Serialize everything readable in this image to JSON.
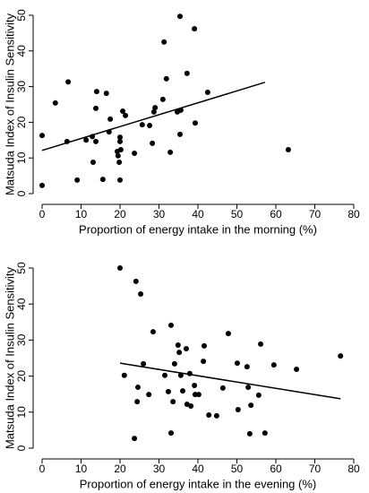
{
  "chart_data": [
    {
      "type": "scatter",
      "x_label": "Proportion of energy intake in the morning (%)",
      "y_label": "Matsuda Index of Insulin Sensitivity",
      "x": [
        0,
        0,
        3.4,
        6.4,
        6.7,
        9,
        11.3,
        12.9,
        13.1,
        13.8,
        13.8,
        14,
        15.6,
        16.5,
        17.2,
        17.5,
        19.3,
        19.5,
        19.8,
        20,
        20,
        20,
        20.2,
        20.7,
        21.4,
        23.7,
        25.7,
        27.6,
        28.3,
        28.7,
        29,
        31,
        31.3,
        31.9,
        32.9,
        34.7,
        35.4,
        35.4,
        35.6,
        37.2,
        39.1,
        39.3,
        42.5,
        63.2
      ],
      "values": [
        16.3,
        2.3,
        25.4,
        14.6,
        31.3,
        3.8,
        15,
        16,
        8.8,
        14.6,
        23.9,
        28.6,
        4,
        28.1,
        17.3,
        20.9,
        11.8,
        10.6,
        8.8,
        14.6,
        15.8,
        3.8,
        12.3,
        23.1,
        21.9,
        11.3,
        19.3,
        19.1,
        14.1,
        22.9,
        24.1,
        26.4,
        42.5,
        32.2,
        11.6,
        22.9,
        49.7,
        16.6,
        23.4,
        33.7,
        46.2,
        19.8,
        28.4,
        12.3
      ],
      "color": "#000000",
      "fit": {
        "x": [
          0,
          57.2
        ],
        "values": [
          12.1,
          31.2
        ]
      },
      "xlim": [
        0,
        80
      ],
      "xticks": [
        0,
        10,
        20,
        30,
        40,
        50,
        60,
        70,
        80
      ],
      "ylim": [
        0,
        50
      ],
      "yticks": [
        0,
        10,
        20,
        30,
        40,
        50
      ]
    },
    {
      "type": "scatter",
      "x_label": "Proportion of energy intake in the evening (%)",
      "y_label": "Matsuda Index of Insulin Sensitivity",
      "x": [
        20,
        21.1,
        24.1,
        25.3,
        26,
        24.6,
        24.4,
        23.7,
        27.4,
        28.5,
        31.5,
        32.4,
        33.1,
        33.1,
        33.6,
        34,
        34.9,
        35.2,
        35.6,
        36.1,
        37,
        37.2,
        37.9,
        38.2,
        39.1,
        39.3,
        40.2,
        41.4,
        41.6,
        42.8,
        44.8,
        46.4,
        47.8,
        50.1,
        50.3,
        52.6,
        52.9,
        53.3,
        53.6,
        55.6,
        56.1,
        57.2,
        59.5,
        65.3,
        76.6
      ],
      "values": [
        50,
        20.2,
        46.3,
        42.8,
        23.4,
        16.9,
        12.9,
        2.7,
        14.9,
        32.3,
        20.2,
        15.7,
        34.1,
        4.2,
        12.9,
        23.4,
        28.6,
        26.6,
        20.2,
        15.9,
        27.6,
        12.2,
        20.7,
        11.7,
        17.4,
        14.9,
        14.9,
        24.1,
        28.4,
        9.2,
        9,
        16.7,
        31.8,
        23.6,
        10.7,
        22.6,
        16.9,
        4,
        11.9,
        14.7,
        28.9,
        4.2,
        23.1,
        21.9,
        25.6
      ],
      "color": "#000000",
      "fit": {
        "x": [
          20,
          76.6
        ],
        "values": [
          23.6,
          13.7
        ]
      },
      "xlim": [
        0,
        80
      ],
      "xticks": [
        0,
        10,
        20,
        30,
        40,
        50,
        60,
        70,
        80
      ],
      "ylim": [
        0,
        50
      ],
      "yticks": [
        0,
        10,
        20,
        30,
        40,
        50
      ]
    }
  ]
}
